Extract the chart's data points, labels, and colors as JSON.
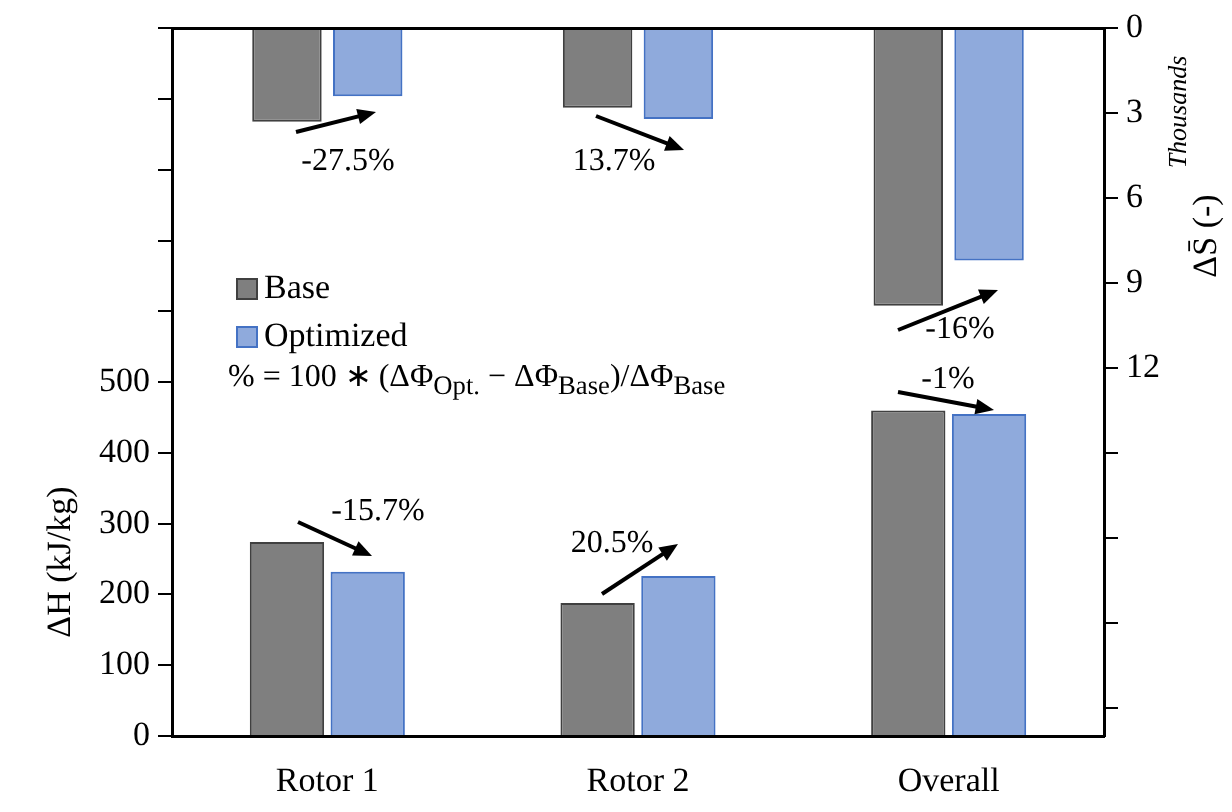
{
  "chart_data": {
    "type": "bar",
    "categories": [
      "Rotor 1",
      "Rotor 2",
      "Overall"
    ],
    "ylabel": "ΔH (kJ/kg)",
    "y2label": "ΔS̄ (-)",
    "ylim": [
      0,
      1000
    ],
    "yticks": [
      0,
      100,
      200,
      300,
      400,
      500,
      {
        "value": 600,
        "label": null
      },
      {
        "value": 700,
        "label": null
      },
      {
        "value": 800,
        "label": null
      },
      {
        "value": 900,
        "label": null
      },
      {
        "value": 1000,
        "label": null
      }
    ],
    "y2lim": [
      25,
      0
    ],
    "y2ticks": [
      0,
      3,
      6,
      9,
      12,
      {
        "value": 15,
        "label": null
      },
      {
        "value": 18,
        "label": null
      },
      {
        "value": 21,
        "label": null
      },
      {
        "value": 24,
        "label": null
      }
    ],
    "series": [
      {
        "name": "Base",
        "color": "#7f7f7f",
        "values": [
          274,
          188,
          460
        ]
      },
      {
        "name": "Optimized",
        "color": "#4472c4",
        "values": [
          232,
          226,
          455
        ]
      },
      {
        "color": "#7f7f7f",
        "values": [
          3.3,
          2.8,
          9.8
        ],
        "axis": "y2"
      },
      {
        "color": "#4472c4",
        "values": [
          2.4,
          3.2,
          8.2
        ],
        "axis": "y2"
      }
    ],
    "legend": "left",
    "grid": false,
    "annotations": [
      "% = 100 ∗ (ΔΦ$_{Opt.}$ − ΔΦ$_{Base}$)/ΔΦ$_{Base}$",
      "Thousands",
      "-27.5%",
      "13.7%",
      "-16%",
      "-1%",
      "-15.7%",
      "20.5%"
    ]
  }
}
